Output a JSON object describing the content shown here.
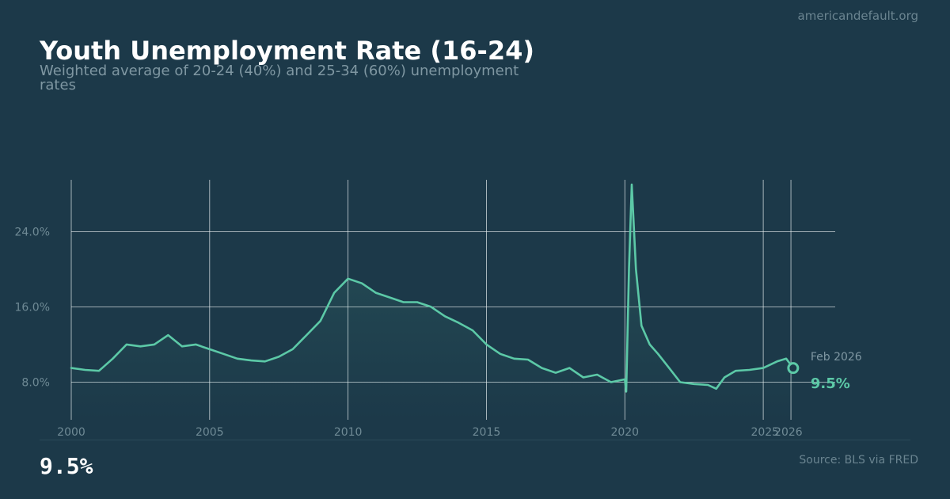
{
  "site": "americandefault.org",
  "title": "Youth Unemployment Rate (16-24)",
  "subtitle": "Weighted average of 20-24 (40%) and 25-34 (60%) unemployment rates",
  "big_value": "9.5%",
  "source": "Source: BLS via FRED",
  "colors": {
    "background": "#1c3949",
    "line": "#5cc9a7",
    "grid": "#e8eef0",
    "tick": "#6f8a95"
  },
  "chart_data": {
    "type": "line",
    "title": "Youth Unemployment Rate (16-24)",
    "subtitle": "Weighted average of 20-24 (40%) and 25-34 (60%) unemployment rates",
    "xlabel": "",
    "ylabel": "",
    "xlim": [
      2000,
      2027.6
    ],
    "ylim": [
      4.0,
      29.5
    ],
    "x_ticks": [
      2000,
      2005,
      2010,
      2015,
      2020,
      2025,
      2026
    ],
    "x_tick_labels": [
      "2000",
      "2005",
      "2010",
      "2015",
      "2020",
      "2025",
      "2026"
    ],
    "y_ticks": [
      8,
      16,
      24
    ],
    "y_tick_labels": [
      "8.0%",
      "16.0%",
      "24.0%"
    ],
    "grid": true,
    "legend": "none",
    "annotation": {
      "date_label": "Feb 2026",
      "value_label": "9.5%"
    },
    "series": [
      {
        "x": [
          2000,
          2000.5,
          2001,
          2001.5,
          2002,
          2002.5,
          2003,
          2003.5,
          2004,
          2004.5,
          2005,
          2005.5,
          2006,
          2006.5,
          2007,
          2007.5,
          2008,
          2008.5,
          2009,
          2009.5,
          2010,
          2010.5,
          2011,
          2011.5,
          2012,
          2012.5,
          2013,
          2013.5,
          2014,
          2014.5,
          2015,
          2015.5,
          2016,
          2016.5,
          2017,
          2017.5,
          2018,
          2018.5,
          2019,
          2019.5,
          2020,
          2020.05,
          2020.15,
          2020.25,
          2020.4,
          2020.6,
          2020.9,
          2021.2,
          2021.6,
          2022,
          2022.5,
          2023,
          2023.3,
          2023.6,
          2024,
          2024.5,
          2025,
          2025.5,
          2025.83,
          2026.08
        ],
        "y": [
          9.5,
          9.3,
          9.2,
          10.5,
          12.0,
          11.8,
          12.0,
          13.0,
          11.8,
          12.0,
          11.5,
          11.0,
          10.5,
          10.3,
          10.2,
          10.7,
          11.5,
          13.0,
          14.5,
          17.5,
          19.0,
          18.5,
          17.5,
          17.0,
          16.5,
          16.5,
          16.0,
          15.0,
          14.3,
          13.5,
          12.0,
          11.0,
          10.5,
          10.4,
          9.5,
          9.0,
          9.5,
          8.5,
          8.8,
          8.0,
          8.3,
          7.0,
          20.0,
          29.0,
          20.0,
          14.0,
          12.0,
          11.0,
          9.5,
          8.0,
          7.8,
          7.7,
          7.3,
          8.5,
          9.2,
          9.3,
          9.5,
          10.2,
          10.5,
          9.5
        ]
      }
    ]
  }
}
